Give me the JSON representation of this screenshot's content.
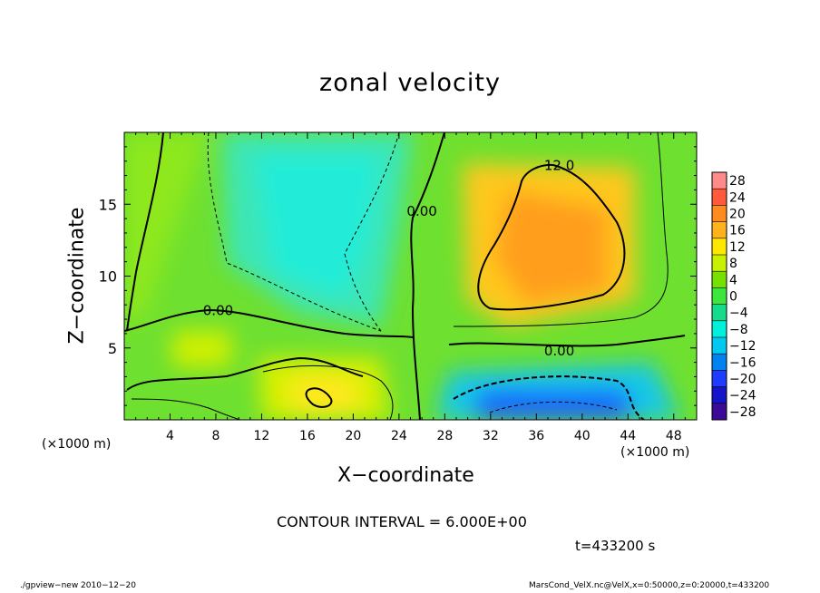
{
  "chart_data": {
    "type": "heatmap",
    "title": "zonal velocity",
    "xlabel": "X−coordinate",
    "ylabel": "Z−coordinate",
    "x_unit_left": "(×1000 m)",
    "x_unit_right": "(×1000 m)",
    "xlim": [
      0,
      50
    ],
    "ylim": [
      0,
      20
    ],
    "x_ticks": [
      "4",
      "8",
      "12",
      "16",
      "20",
      "24",
      "28",
      "32",
      "36",
      "40",
      "44",
      "48"
    ],
    "x_tick_values": [
      4,
      8,
      12,
      16,
      20,
      24,
      28,
      32,
      36,
      40,
      44,
      48
    ],
    "y_ticks": [
      "5",
      "10",
      "15"
    ],
    "y_tick_values": [
      5,
      10,
      15
    ],
    "colorbar": {
      "labels": [
        "28",
        "24",
        "20",
        "16",
        "12",
        "8",
        "4",
        "0",
        "−4",
        "−8",
        "−12",
        "−16",
        "−20",
        "−24",
        "−28"
      ],
      "values": [
        28,
        24,
        20,
        16,
        12,
        8,
        4,
        0,
        -4,
        -8,
        -12,
        -16,
        -20,
        -24,
        -28
      ],
      "colors": [
        "#ff8a8a",
        "#ff5a3c",
        "#ff8a1e",
        "#ffb21e",
        "#ffe800",
        "#c8f000",
        "#78e000",
        "#3ce63c",
        "#14dc8c",
        "#00f0dc",
        "#00c8f0",
        "#0082f0",
        "#1e3cff",
        "#1414c8",
        "#3c0a96"
      ]
    },
    "contour_labels": [
      {
        "text": "0.00",
        "x": 8.2,
        "y": 7.6
      },
      {
        "text": "0.00",
        "x": 26.0,
        "y": 14.5
      },
      {
        "text": "0.00",
        "x": 38.0,
        "y": 4.8
      },
      {
        "text": "12.0",
        "x": 38.0,
        "y": 17.7
      }
    ],
    "contour_interval": "CONTOUR INTERVAL = 6.000E+00",
    "time": "t=433200 s",
    "footer_left": "./gpview−new  2010−12−20",
    "footer_right": "MarsCond_VelX.nc@VelX,x=0:50000,z=0:20000,t=433200"
  }
}
